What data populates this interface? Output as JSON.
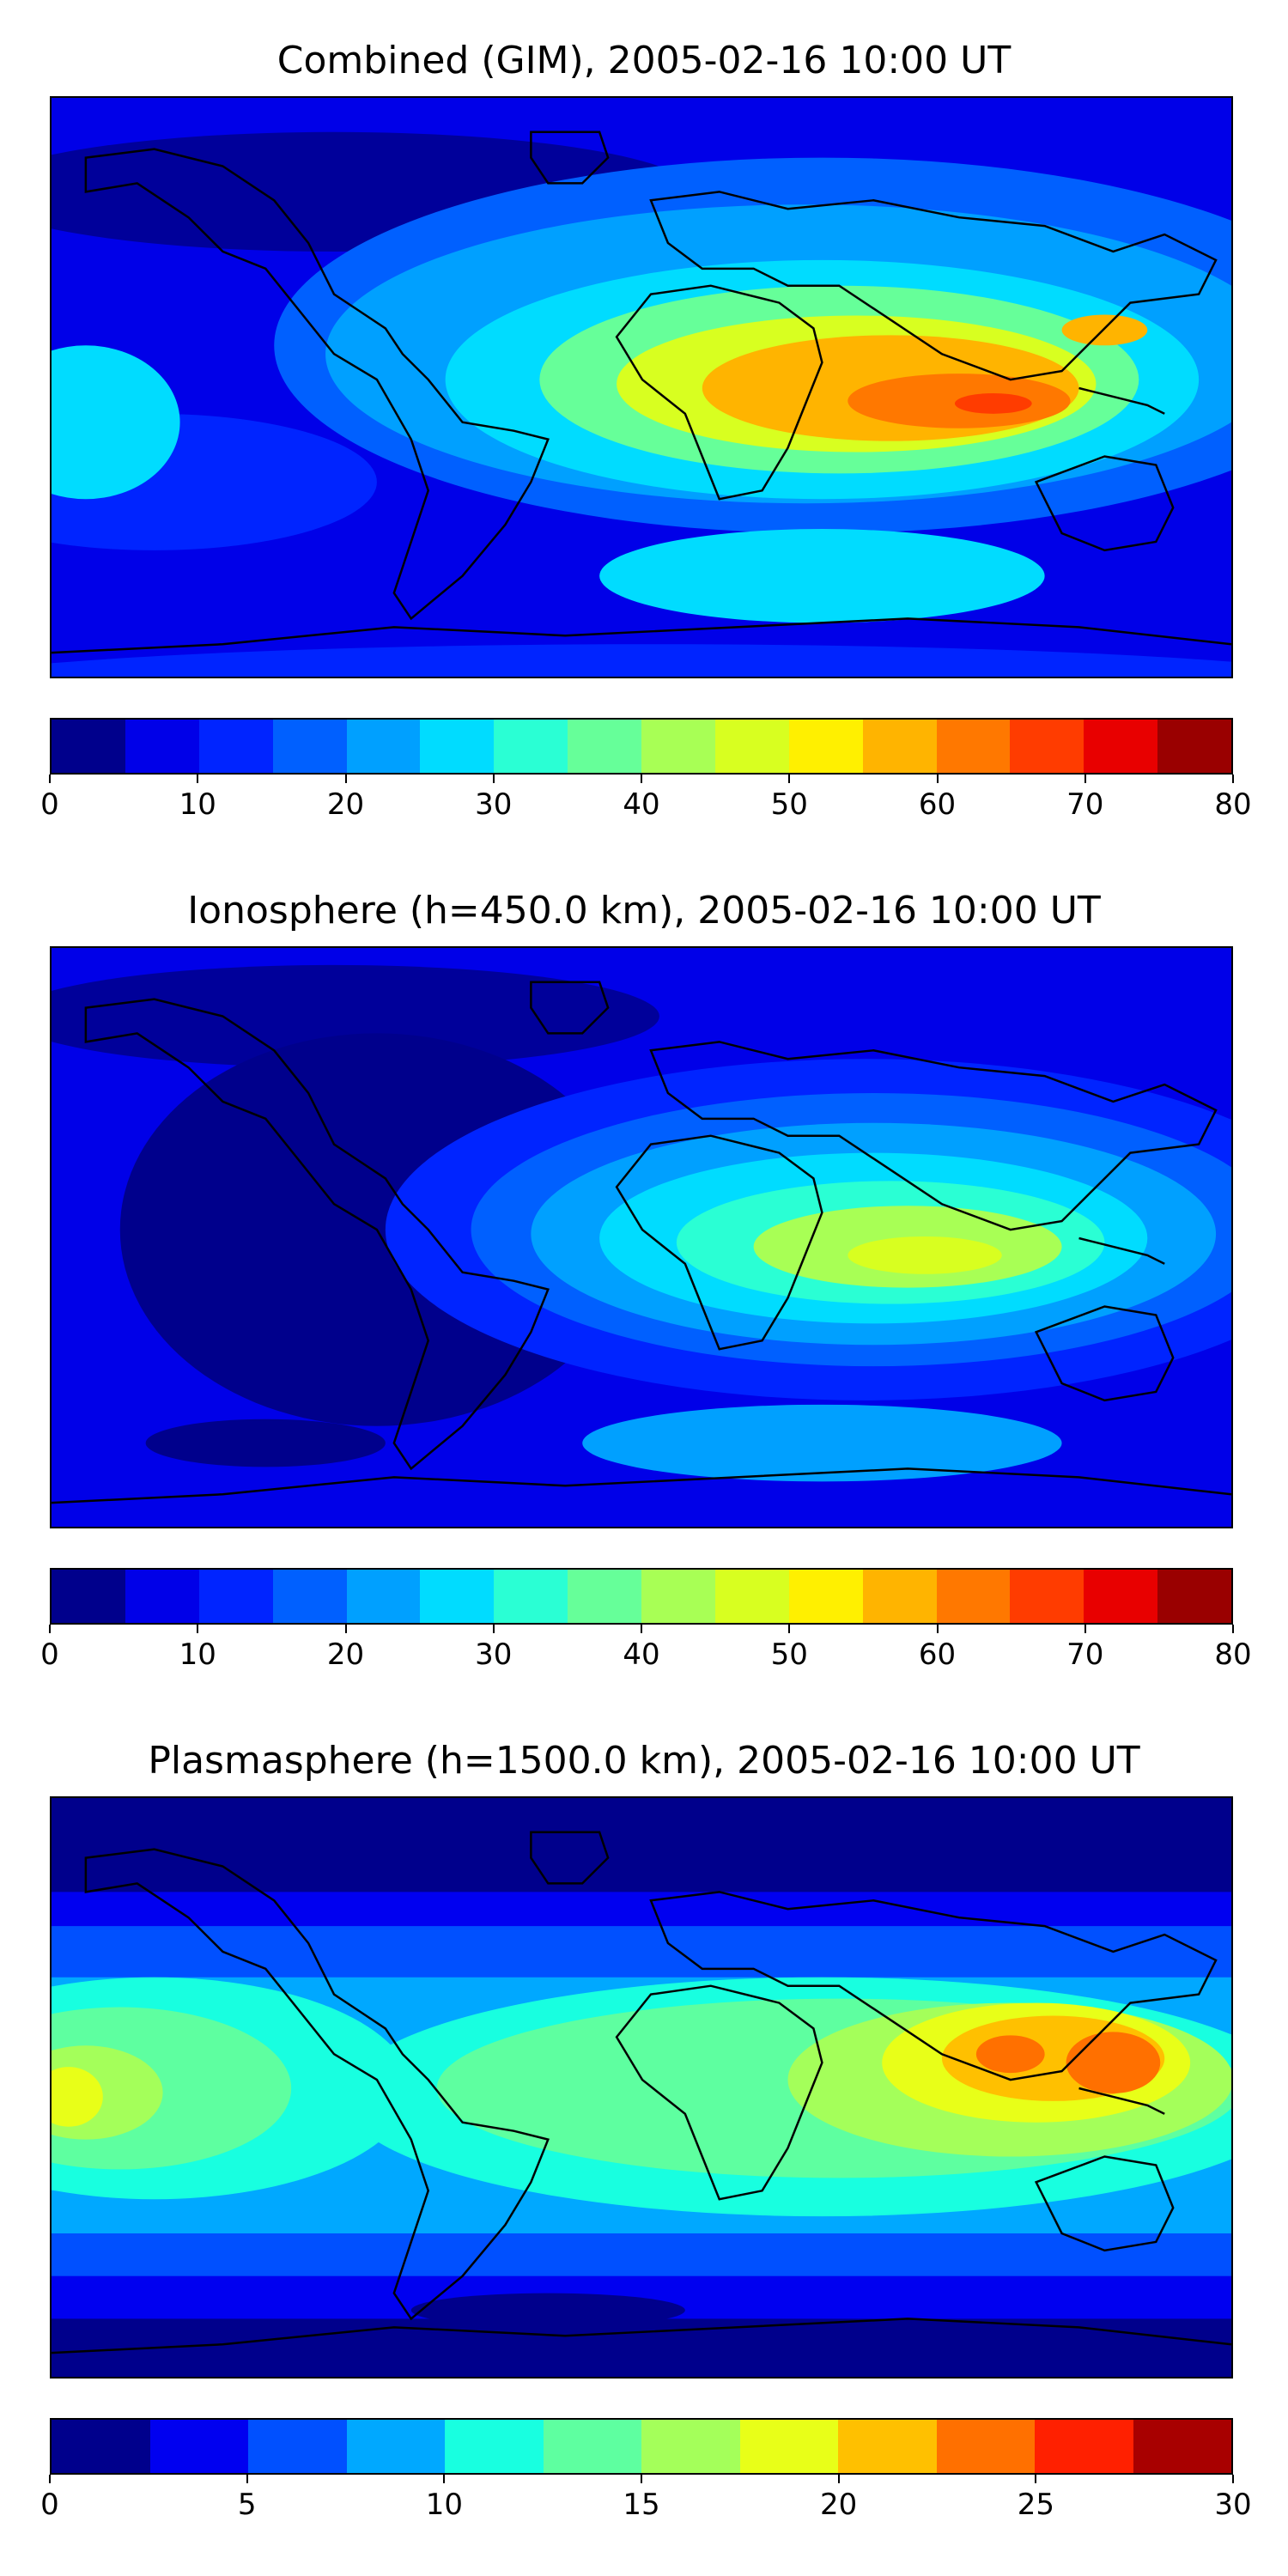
{
  "panels": [
    {
      "title": "Combined (GIM), 2005-02-16 10:00 UT",
      "colorbar": {
        "vmin": 0,
        "vmax": 80,
        "tick_labels": [
          "0",
          "10",
          "20",
          "30",
          "40",
          "50",
          "60",
          "70",
          "80"
        ],
        "colors": [
          "#00008c",
          "#0000e8",
          "#0024ff",
          "#0060ff",
          "#00a0ff",
          "#00dcff",
          "#2affd4",
          "#66ff99",
          "#a8ff55",
          "#d8ff20",
          "#fff000",
          "#ffb400",
          "#ff7800",
          "#ff3c00",
          "#e80000",
          "#9a0000"
        ]
      }
    },
    {
      "title": "Ionosphere  (h=450.0 km), 2005-02-16 10:00 UT",
      "colorbar": {
        "vmin": 0,
        "vmax": 80,
        "tick_labels": [
          "0",
          "10",
          "20",
          "30",
          "40",
          "50",
          "60",
          "70",
          "80"
        ],
        "colors": [
          "#00008c",
          "#0000e8",
          "#0024ff",
          "#0060ff",
          "#00a0ff",
          "#00dcff",
          "#2affd4",
          "#66ff99",
          "#a8ff55",
          "#d8ff20",
          "#fff000",
          "#ffb400",
          "#ff7800",
          "#ff3c00",
          "#e80000",
          "#9a0000"
        ]
      }
    },
    {
      "title": "Plasmasphere (h=1500.0 km), 2005-02-16 10:00 UT",
      "colorbar": {
        "vmin": 0,
        "vmax": 30,
        "tick_labels": [
          "0",
          "5",
          "10",
          "15",
          "20",
          "25",
          "30"
        ],
        "colors": [
          "#00008c",
          "#0000f0",
          "#0050ff",
          "#00a8ff",
          "#18ffe0",
          "#5effa0",
          "#a4ff5a",
          "#e8ff18",
          "#ffc000",
          "#ff7000",
          "#ff2000",
          "#a80000"
        ]
      }
    }
  ]
}
